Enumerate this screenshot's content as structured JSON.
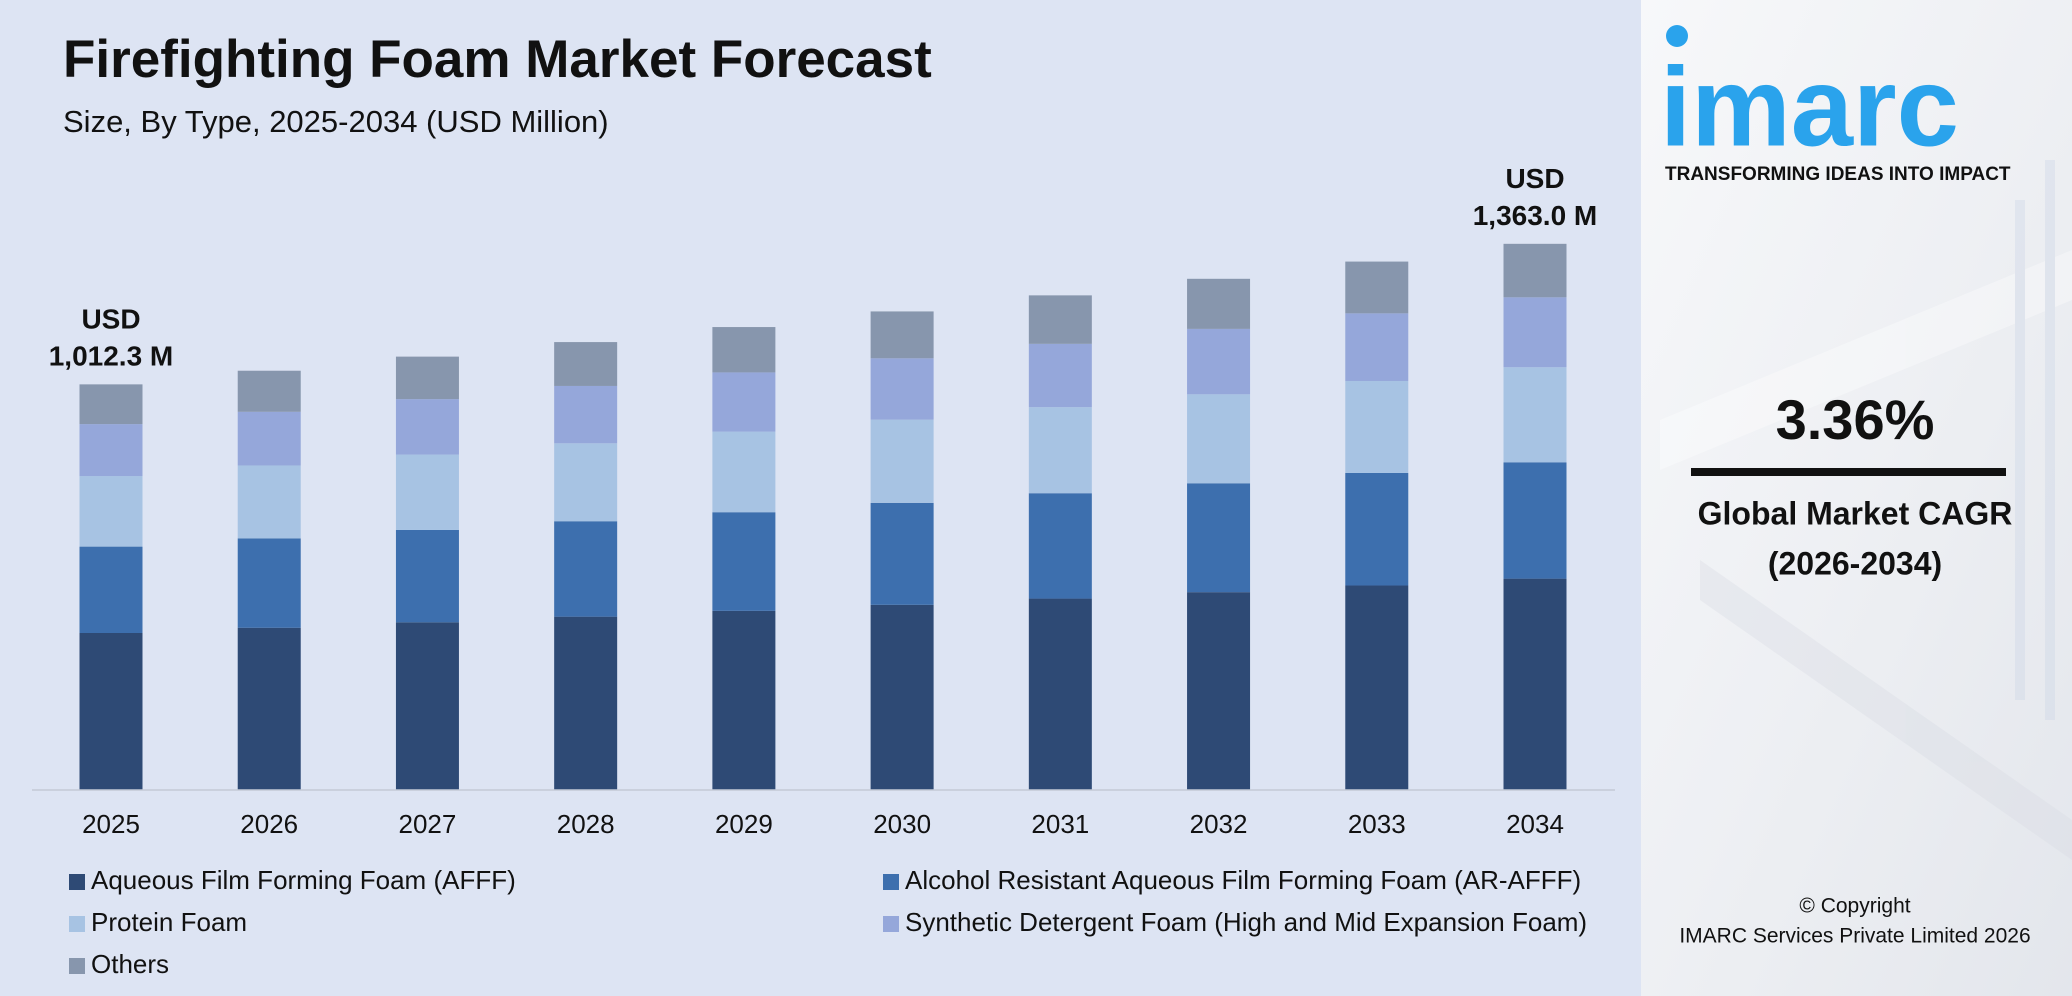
{
  "chart_data": {
    "type": "stacked-bar",
    "title": "Firefighting Foam Market Forecast",
    "subtitle": "Size, By Type, 2025-2034 (USD Million)",
    "categories": [
      "2025",
      "2026",
      "2027",
      "2028",
      "2029",
      "2030",
      "2031",
      "2032",
      "2033",
      "2034"
    ],
    "series": [
      {
        "name": "Aqueous Film Forming Foam (AFFF)",
        "color": "#2e4a75",
        "values": [
          391.8,
          404.9,
          418.5,
          432.6,
          447.1,
          462.2,
          477.7,
          493.7,
          510.3,
          527.5
        ]
      },
      {
        "name": "Alcohol Resistant Aqueous Film Forming Foam (AR-AFFF)",
        "color": "#3d6fae",
        "values": [
          215.6,
          222.9,
          230.4,
          238.1,
          246.1,
          254.4,
          262.9,
          271.7,
          280.9,
          290.3
        ]
      },
      {
        "name": "Protein Foam",
        "color": "#a7c3e3",
        "values": [
          176.1,
          182.1,
          188.2,
          194.5,
          201.0,
          207.8,
          214.8,
          222.0,
          229.5,
          237.2
        ]
      },
      {
        "name": "Synthetic Detergent Foam (High and Mid Expansion Foam)",
        "color": "#95a7da",
        "values": [
          129.6,
          133.9,
          138.4,
          143.1,
          147.9,
          152.9,
          158.0,
          163.3,
          168.8,
          174.5
        ]
      },
      {
        "name": "Others",
        "color": "#8796ad",
        "values": [
          99.2,
          102.5,
          106.0,
          109.5,
          113.2,
          117.0,
          121.0,
          125.0,
          129.2,
          133.5
        ]
      }
    ],
    "ylim": [
      0,
      1400
    ],
    "grid": false,
    "annotations": [
      {
        "category": "2025",
        "lines": [
          "USD",
          "1,012.3 M"
        ],
        "value": 1012.3
      },
      {
        "category": "2034",
        "lines": [
          "USD",
          "1,363.0 M"
        ],
        "value": 1363.0
      }
    ]
  },
  "sidebar": {
    "logo": "imarc",
    "tagline": "TRANSFORMING IDEAS INTO IMPACT",
    "cagr": "3.36%",
    "cagr_label": [
      "Global Market CAGR",
      "(2026-2034)"
    ],
    "copyright": [
      "© Copyright",
      "IMARC Services Private Limited 2026"
    ]
  }
}
